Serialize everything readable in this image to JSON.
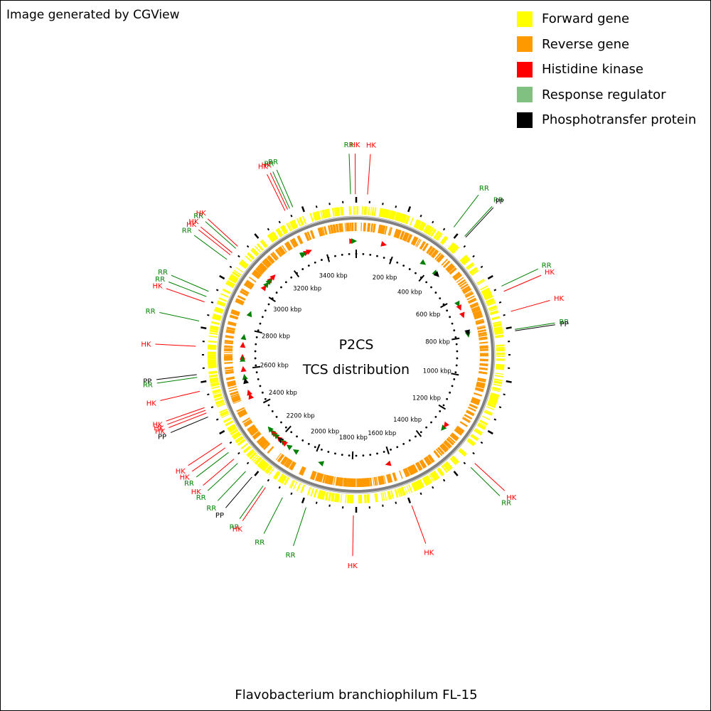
{
  "credit": "Image generated by CGView",
  "map_title": "P2CS",
  "map_subtitle": "TCS distribution",
  "organism": "Flavobacterium branchiophilum FL-15",
  "legend": [
    {
      "key": "forward",
      "label": "Forward gene",
      "color": "#ffff00"
    },
    {
      "key": "reverse",
      "label": "Reverse gene",
      "color": "#ff9900"
    },
    {
      "key": "hk",
      "label": "Histidine kinase",
      "color": "#ff0000"
    },
    {
      "key": "rr",
      "label": "Response regulator",
      "color": "#80c080"
    },
    {
      "key": "pp",
      "label": "Phosphotransfer protein",
      "color": "#000000"
    }
  ],
  "colors": {
    "hk_text": "#ff0000",
    "rr_text": "#008000",
    "pp_text": "#000000",
    "rr_marker": "#008000",
    "backbone": "#808080"
  },
  "genome_length_kbp": 3560,
  "ticks_kbp": [
    200,
    400,
    600,
    800,
    1000,
    1200,
    1400,
    1600,
    1800,
    2000,
    2200,
    2400,
    2600,
    2800,
    3000,
    3200,
    3400
  ],
  "tick_unit": "kbp",
  "tcs_features": [
    {
      "type": "RR",
      "kbp": 3540
    },
    {
      "type": "HK",
      "kbp": 3557
    },
    {
      "type": "HK",
      "kbp": 40
    },
    {
      "type": "RR",
      "kbp": 3330
    },
    {
      "type": "RR",
      "kbp": 3318
    },
    {
      "type": "HK",
      "kbp": 3310
    },
    {
      "type": "HK",
      "kbp": 3300
    },
    {
      "type": "RR",
      "kbp": 370
    },
    {
      "type": "RR",
      "kbp": 420
    },
    {
      "type": "PP",
      "kbp": 425
    },
    {
      "type": "RR",
      "kbp": 640
    },
    {
      "type": "HK",
      "kbp": 660
    },
    {
      "type": "HK",
      "kbp": 735
    },
    {
      "type": "RR",
      "kbp": 800
    },
    {
      "type": "PP",
      "kbp": 805
    },
    {
      "type": "HK",
      "kbp": 3090
    },
    {
      "type": "RR",
      "kbp": 3080
    },
    {
      "type": "HK",
      "kbp": 3060
    },
    {
      "type": "HK",
      "kbp": 3050
    },
    {
      "type": "RR",
      "kbp": 3030
    },
    {
      "type": "RR",
      "kbp": 2900
    },
    {
      "type": "RR",
      "kbp": 2880
    },
    {
      "type": "HK",
      "kbp": 2860
    },
    {
      "type": "RR",
      "kbp": 2790
    },
    {
      "type": "HK",
      "kbp": 2700
    },
    {
      "type": "PP",
      "kbp": 2600
    },
    {
      "type": "RR",
      "kbp": 2590
    },
    {
      "type": "HK",
      "kbp": 2540
    },
    {
      "type": "HK",
      "kbp": 2480
    },
    {
      "type": "HK",
      "kbp": 2470
    },
    {
      "type": "HK",
      "kbp": 2460
    },
    {
      "type": "PP",
      "kbp": 2445
    },
    {
      "type": "HK",
      "kbp": 2340
    },
    {
      "type": "HK",
      "kbp": 2320
    },
    {
      "type": "RR",
      "kbp": 2300
    },
    {
      "type": "HK",
      "kbp": 2270
    },
    {
      "type": "RR",
      "kbp": 2250
    },
    {
      "type": "RR",
      "kbp": 2210
    },
    {
      "type": "PP",
      "kbp": 2180
    },
    {
      "type": "RR",
      "kbp": 2130
    },
    {
      "type": "HK",
      "kbp": 2120
    },
    {
      "type": "RR",
      "kbp": 2050
    },
    {
      "type": "RR",
      "kbp": 1960
    },
    {
      "type": "HK",
      "kbp": 1790
    },
    {
      "type": "RR",
      "kbp": 1330
    },
    {
      "type": "HK",
      "kbp": 1310
    },
    {
      "type": "HK",
      "kbp": 1580
    }
  ],
  "tcs_markers": [
    {
      "type": "HK",
      "kbp": 3540
    },
    {
      "type": "RR",
      "kbp": 3550
    },
    {
      "type": "HK",
      "kbp": 140
    },
    {
      "type": "HK",
      "kbp": 3320
    },
    {
      "type": "HK",
      "kbp": 3305
    },
    {
      "type": "RR",
      "kbp": 3290
    },
    {
      "type": "RR",
      "kbp": 3285
    },
    {
      "type": "RR",
      "kbp": 360
    },
    {
      "type": "RR",
      "kbp": 440
    },
    {
      "type": "PP",
      "kbp": 450
    },
    {
      "type": "RR",
      "kbp": 630
    },
    {
      "type": "HK",
      "kbp": 650
    },
    {
      "type": "HK",
      "kbp": 690
    },
    {
      "type": "RR",
      "kbp": 790
    },
    {
      "type": "PP",
      "kbp": 780
    },
    {
      "type": "HK",
      "kbp": 3100
    },
    {
      "type": "HK",
      "kbp": 3080
    },
    {
      "type": "RR",
      "kbp": 3070
    },
    {
      "type": "RR",
      "kbp": 3050
    },
    {
      "type": "HK",
      "kbp": 3030
    },
    {
      "type": "RR",
      "kbp": 2880
    },
    {
      "type": "RR",
      "kbp": 2760
    },
    {
      "type": "HK",
      "kbp": 2720
    },
    {
      "type": "HK",
      "kbp": 2660
    },
    {
      "type": "RR",
      "kbp": 2650
    },
    {
      "type": "HK",
      "kbp": 2600
    },
    {
      "type": "RR",
      "kbp": 2560
    },
    {
      "type": "PP",
      "kbp": 2540
    },
    {
      "type": "HK",
      "kbp": 2480
    },
    {
      "type": "HK",
      "kbp": 2460
    },
    {
      "type": "RR",
      "kbp": 2270
    },
    {
      "type": "RR",
      "kbp": 2250
    },
    {
      "type": "HK",
      "kbp": 2240
    },
    {
      "type": "RR",
      "kbp": 2225
    },
    {
      "type": "HK",
      "kbp": 2205
    },
    {
      "type": "PP",
      "kbp": 2195
    },
    {
      "type": "RR",
      "kbp": 2180
    },
    {
      "type": "HK",
      "kbp": 2170
    },
    {
      "type": "RR",
      "kbp": 2140
    },
    {
      "type": "RR",
      "kbp": 2100
    },
    {
      "type": "RR",
      "kbp": 1960
    },
    {
      "type": "HK",
      "kbp": 1620
    },
    {
      "type": "RR",
      "kbp": 1290
    },
    {
      "type": "HK",
      "kbp": 1270
    }
  ]
}
